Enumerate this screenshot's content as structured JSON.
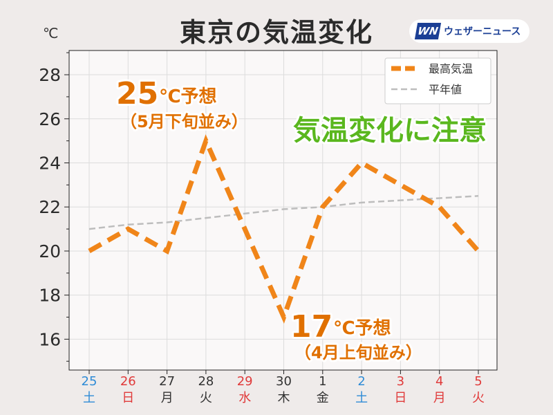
{
  "header": {
    "title": "東京の気温変化",
    "unit": "℃",
    "logo_mark": "WN",
    "logo_text": "ウェザーニュース"
  },
  "annotations": {
    "high_value": "25",
    "high_unit": "℃予想",
    "high_note": "（5月下旬並み）",
    "low_value": "17",
    "low_unit": "℃予想",
    "low_note": "（4月上旬並み）",
    "warning": "気温変化に注意"
  },
  "colors": {
    "max_temp": "#f08519",
    "normal": "#bdbdbd",
    "annotation": "#e07000",
    "warning": "#5ab71e",
    "weekday": "#333333",
    "saturday": "#2e8bd6",
    "holiday": "#e03a3a"
  },
  "chart_data": {
    "type": "line",
    "categories": [
      {
        "date": "25",
        "weekday": "土",
        "kind": "saturday"
      },
      {
        "date": "26",
        "weekday": "日",
        "kind": "holiday"
      },
      {
        "date": "27",
        "weekday": "月",
        "kind": "weekday"
      },
      {
        "date": "28",
        "weekday": "火",
        "kind": "weekday"
      },
      {
        "date": "29",
        "weekday": "水",
        "kind": "holiday"
      },
      {
        "date": "30",
        "weekday": "木",
        "kind": "weekday"
      },
      {
        "date": "1",
        "weekday": "金",
        "kind": "weekday"
      },
      {
        "date": "2",
        "weekday": "土",
        "kind": "saturday"
      },
      {
        "date": "3",
        "weekday": "日",
        "kind": "holiday"
      },
      {
        "date": "4",
        "weekday": "月",
        "kind": "holiday"
      },
      {
        "date": "5",
        "weekday": "火",
        "kind": "holiday"
      }
    ],
    "series": [
      {
        "name": "最高気温",
        "values": [
          20,
          21,
          20,
          25,
          21,
          17,
          22,
          24,
          23,
          22,
          20
        ]
      },
      {
        "name": "平年値",
        "values": [
          21.0,
          21.2,
          21.3,
          21.5,
          21.7,
          21.9,
          22.0,
          22.2,
          22.3,
          22.4,
          22.5
        ]
      }
    ],
    "yticks": [
      16,
      18,
      20,
      22,
      24,
      26,
      28
    ],
    "ylim": [
      14.6,
      29.1
    ],
    "grid": true,
    "legend": "top-right"
  }
}
